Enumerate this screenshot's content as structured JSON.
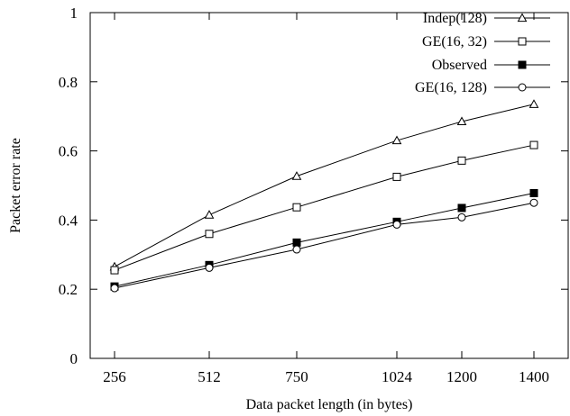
{
  "chart_data": {
    "type": "line",
    "title": "",
    "xlabel": "Data packet length (in bytes)",
    "ylabel": "Packet error rate",
    "x": [
      256,
      512,
      750,
      1024,
      1200,
      1400
    ],
    "x_tick_labels": [
      "256",
      "512",
      "750",
      "1024",
      "1200",
      "1400"
    ],
    "x_scale": "categorical (equally spaced ticks)",
    "ylim": [
      0,
      1
    ],
    "y_ticks": [
      0,
      0.2,
      0.4,
      0.6,
      0.8,
      1
    ],
    "y_tick_labels": [
      "0",
      "0.2",
      "0.4",
      "0.6",
      "0.8",
      "1"
    ],
    "grid": false,
    "legend_position": "top-right",
    "series": [
      {
        "name": "Indep(128)",
        "marker": "triangle-open",
        "values": [
          0.265,
          0.415,
          0.527,
          0.63,
          0.685,
          0.735
        ]
      },
      {
        "name": "GE(16, 32)",
        "marker": "square-open",
        "values": [
          0.255,
          0.36,
          0.437,
          0.525,
          0.572,
          0.617
        ]
      },
      {
        "name": "Observed",
        "marker": "square-filled",
        "values": [
          0.208,
          0.27,
          0.335,
          0.395,
          0.435,
          0.478
        ]
      },
      {
        "name": "GE(16, 128)",
        "marker": "circle-open",
        "values": [
          0.203,
          0.262,
          0.315,
          0.387,
          0.408,
          0.45
        ]
      }
    ]
  }
}
